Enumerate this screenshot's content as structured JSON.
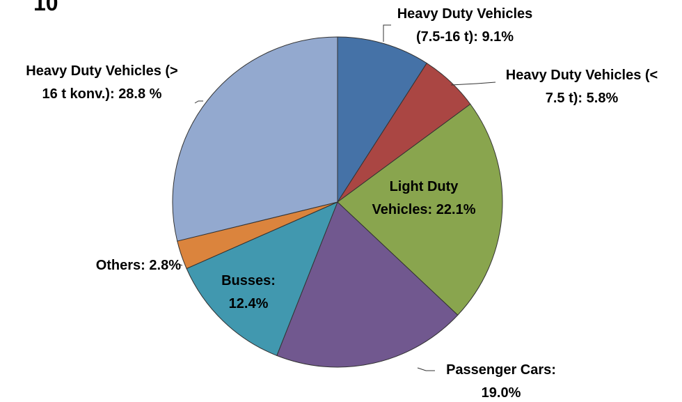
{
  "chart_data": {
    "type": "pie",
    "title": "10",
    "categories": [
      "Heavy Duty Vehicles (7.5-16 t):",
      "Heavy Duty Vehicles (< 7.5 t):",
      "Light Duty Vehicles:",
      "Passenger Cars:",
      "Busses:",
      "Others:",
      "Heavy Duty Vehicles (> 16 t konv.):"
    ],
    "values": [
      9.1,
      5.8,
      22.1,
      19.0,
      12.4,
      2.8,
      28.8
    ],
    "value_labels": [
      "9.1%",
      "5.8%",
      "22.1%",
      "19.0%",
      "12.4%",
      "2.8%",
      "28.8 %"
    ],
    "colors": [
      "#4572a7",
      "#aa4643",
      "#89a54e",
      "#71588f",
      "#4198af",
      "#db843d",
      "#93a9cf"
    ]
  }
}
